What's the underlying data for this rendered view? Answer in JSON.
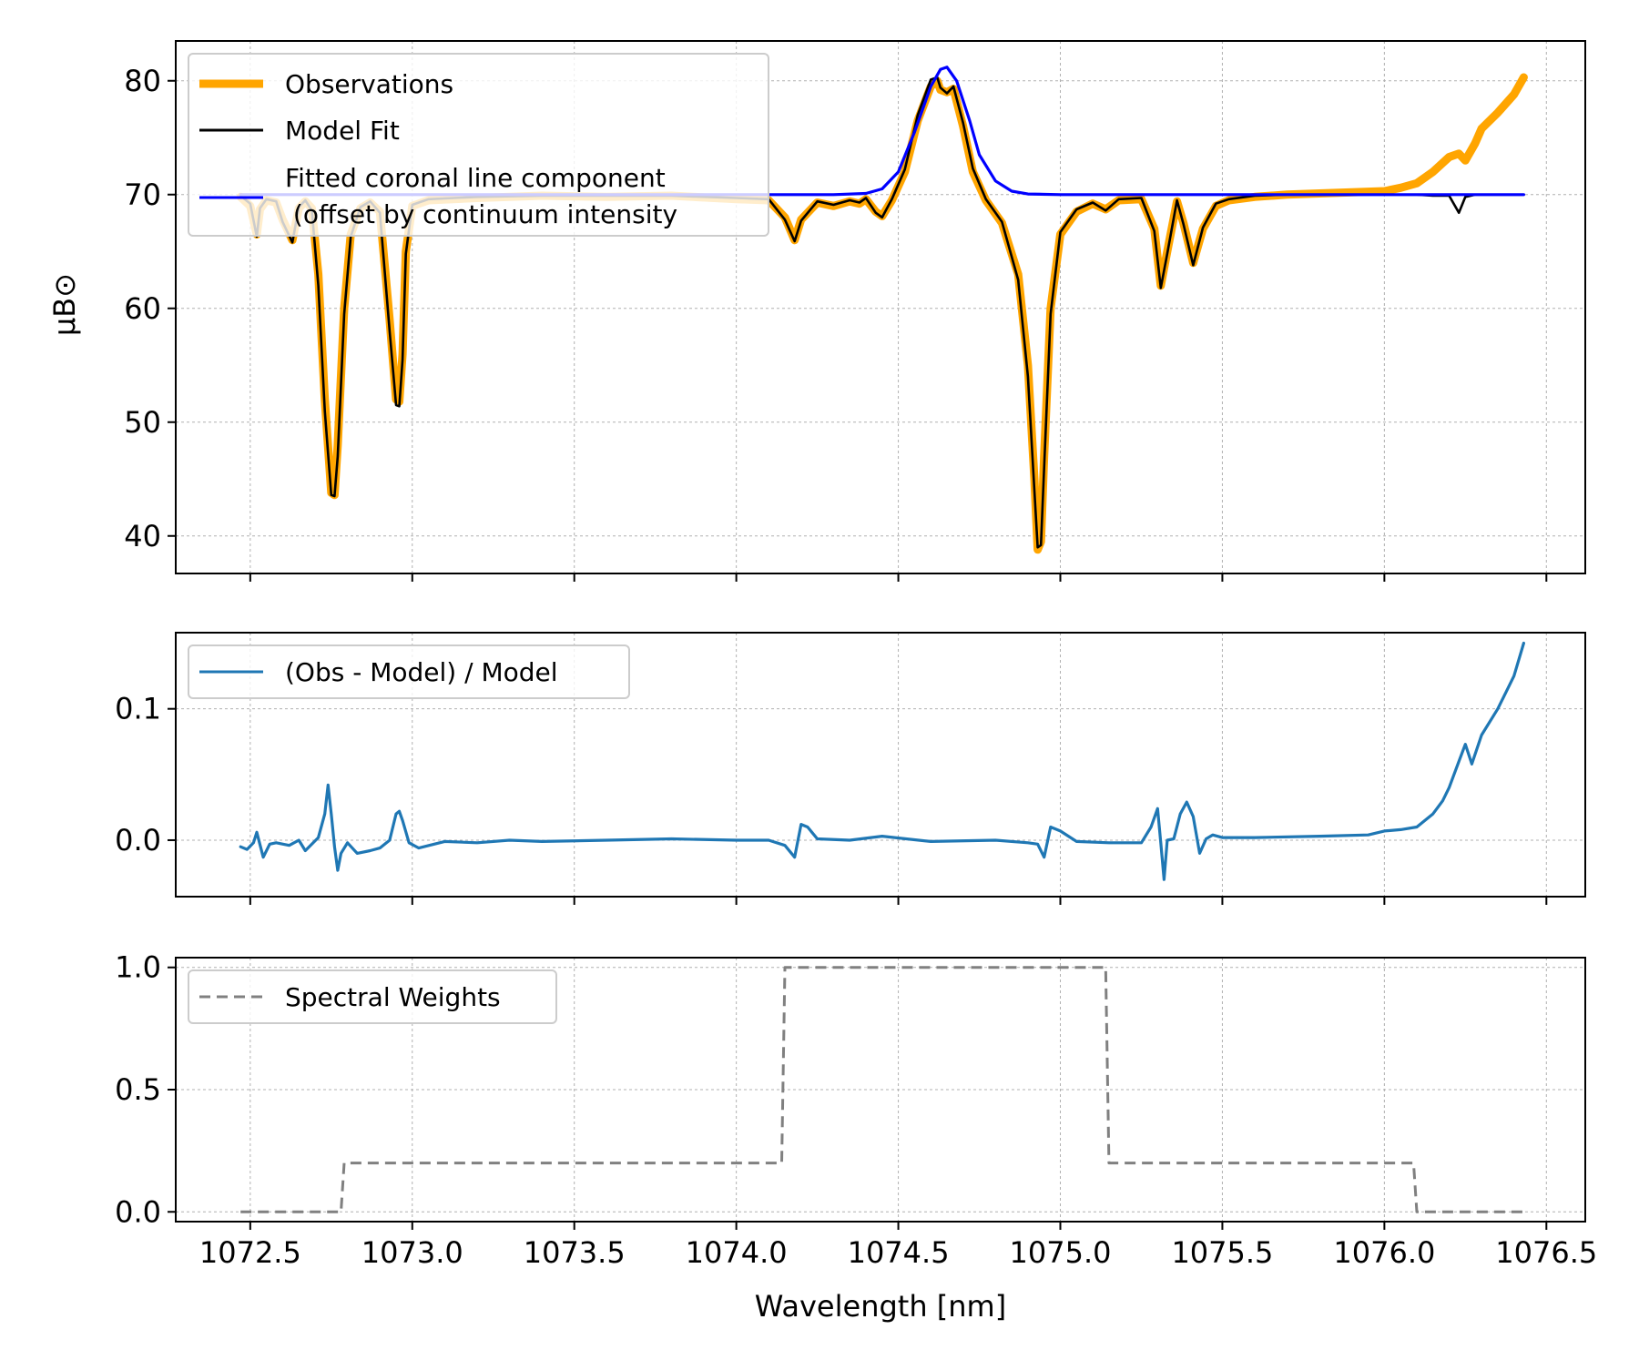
{
  "chart_data": [
    {
      "type": "line",
      "panel": "top",
      "xlabel": "",
      "ylabel": "μB⊙",
      "xlim": [
        1072.27,
        1076.62
      ],
      "ylim": [
        36.7,
        83.5
      ],
      "xticks": [
        1072.5,
        1073.0,
        1073.5,
        1074.0,
        1074.5,
        1075.0,
        1075.5,
        1076.0,
        1076.5
      ],
      "yticks": [
        40,
        50,
        60,
        70,
        80
      ],
      "ytick_labels": [
        "40",
        "50",
        "60",
        "70",
        "80"
      ],
      "grid": true,
      "legend_position": "upper-left",
      "series": [
        {
          "name": "Observations",
          "color": "#ffa500",
          "style": "solid",
          "x": [
            1072.47,
            1072.5,
            1072.52,
            1072.53,
            1072.55,
            1072.58,
            1072.6,
            1072.63,
            1072.65,
            1072.67,
            1072.69,
            1072.71,
            1072.73,
            1072.75,
            1072.76,
            1072.77,
            1072.79,
            1072.81,
            1072.84,
            1072.87,
            1072.9,
            1072.93,
            1072.95,
            1072.96,
            1072.97,
            1072.98,
            1073.0,
            1073.05,
            1073.2,
            1073.4,
            1073.6,
            1073.8,
            1074.0,
            1074.1,
            1074.15,
            1074.18,
            1074.2,
            1074.25,
            1074.3,
            1074.35,
            1074.38,
            1074.4,
            1074.43,
            1074.45,
            1074.48,
            1074.52,
            1074.56,
            1074.6,
            1074.62,
            1074.63,
            1074.65,
            1074.67,
            1074.7,
            1074.73,
            1074.77,
            1074.82,
            1074.87,
            1074.9,
            1074.92,
            1074.93,
            1074.94,
            1074.95,
            1074.97,
            1075.0,
            1075.05,
            1075.1,
            1075.14,
            1075.18,
            1075.25,
            1075.29,
            1075.31,
            1075.33,
            1075.36,
            1075.38,
            1075.41,
            1075.44,
            1075.48,
            1075.52,
            1075.6,
            1075.7,
            1075.8,
            1075.9,
            1076.0,
            1076.05,
            1076.1,
            1076.15,
            1076.2,
            1076.23,
            1076.25,
            1076.28,
            1076.3,
            1076.35,
            1076.4,
            1076.43
          ],
          "y": [
            69.8,
            69.0,
            66.5,
            68.7,
            69.5,
            69.3,
            67.8,
            66.0,
            68.8,
            69.4,
            68.8,
            63.0,
            52.0,
            43.8,
            43.6,
            48.0,
            60.0,
            66.5,
            68.8,
            69.3,
            68.5,
            59.0,
            52.0,
            51.8,
            56.0,
            65.0,
            69.0,
            69.5,
            69.7,
            69.9,
            69.8,
            69.9,
            69.6,
            69.5,
            68.0,
            66.0,
            67.8,
            69.3,
            69.0,
            69.4,
            69.2,
            69.6,
            68.5,
            68.1,
            69.5,
            72.0,
            76.5,
            79.5,
            80.0,
            79.2,
            79.0,
            79.3,
            76.0,
            72.0,
            69.5,
            67.5,
            63.0,
            55.0,
            45.0,
            38.8,
            39.5,
            47.0,
            60.0,
            66.5,
            68.5,
            69.2,
            68.7,
            69.5,
            69.6,
            67.0,
            62.0,
            65.0,
            69.4,
            67.5,
            64.0,
            67.0,
            69.0,
            69.5,
            69.8,
            70.0,
            70.1,
            70.2,
            70.3,
            70.6,
            71.0,
            72.0,
            73.3,
            73.6,
            73.0,
            74.5,
            75.8,
            77.2,
            78.8,
            80.3
          ]
        },
        {
          "name": "Model Fit",
          "color": "#000000",
          "style": "solid",
          "x": [
            1072.47,
            1072.5,
            1072.52,
            1072.53,
            1072.55,
            1072.58,
            1072.6,
            1072.63,
            1072.65,
            1072.67,
            1072.69,
            1072.71,
            1072.73,
            1072.75,
            1072.76,
            1072.77,
            1072.79,
            1072.81,
            1072.84,
            1072.87,
            1072.9,
            1072.93,
            1072.95,
            1072.96,
            1072.97,
            1072.98,
            1073.0,
            1073.05,
            1073.2,
            1073.4,
            1073.6,
            1073.8,
            1074.0,
            1074.1,
            1074.15,
            1074.18,
            1074.2,
            1074.25,
            1074.3,
            1074.35,
            1074.38,
            1074.4,
            1074.43,
            1074.45,
            1074.48,
            1074.52,
            1074.56,
            1074.6,
            1074.62,
            1074.63,
            1074.65,
            1074.67,
            1074.7,
            1074.73,
            1074.77,
            1074.82,
            1074.87,
            1074.9,
            1074.92,
            1074.93,
            1074.94,
            1074.95,
            1074.97,
            1075.0,
            1075.05,
            1075.1,
            1075.14,
            1075.18,
            1075.25,
            1075.29,
            1075.31,
            1075.33,
            1075.36,
            1075.38,
            1075.41,
            1075.44,
            1075.48,
            1075.52,
            1075.6,
            1075.7,
            1075.8,
            1075.9,
            1076.0,
            1076.05,
            1076.1,
            1076.15,
            1076.2,
            1076.23,
            1076.25,
            1076.28,
            1076.3,
            1076.35,
            1076.4,
            1076.43
          ],
          "y": [
            69.9,
            69.2,
            66.3,
            68.8,
            69.6,
            69.4,
            67.6,
            65.8,
            68.9,
            69.5,
            68.6,
            62.0,
            51.0,
            43.6,
            43.5,
            47.0,
            59.5,
            66.3,
            68.9,
            69.4,
            68.4,
            58.0,
            51.5,
            51.4,
            55.5,
            64.8,
            69.1,
            69.6,
            69.8,
            69.9,
            69.9,
            69.9,
            69.7,
            69.6,
            67.8,
            65.9,
            67.7,
            69.4,
            69.1,
            69.5,
            69.3,
            69.7,
            68.4,
            68.0,
            69.6,
            72.2,
            77.0,
            80.1,
            80.3,
            79.4,
            78.9,
            79.5,
            76.3,
            72.3,
            69.6,
            67.6,
            62.5,
            54.0,
            44.0,
            39.0,
            39.2,
            46.0,
            59.5,
            66.7,
            68.7,
            69.3,
            68.6,
            69.6,
            69.7,
            66.8,
            61.8,
            64.8,
            69.5,
            67.4,
            63.8,
            67.1,
            69.2,
            69.6,
            69.9,
            70.0,
            70.0,
            70.0,
            70.0,
            70.0,
            70.0,
            69.9,
            69.9,
            68.4,
            69.8,
            70.0,
            70.0,
            70.0,
            70.0,
            70.0
          ]
        },
        {
          "name": "Fitted coronal line component\n (offset by continuum intensity",
          "color": "#0000ff",
          "style": "solid",
          "x": [
            1072.47,
            1074.0,
            1074.3,
            1074.4,
            1074.45,
            1074.5,
            1074.55,
            1074.6,
            1074.63,
            1074.65,
            1074.68,
            1074.72,
            1074.75,
            1074.8,
            1074.85,
            1074.9,
            1075.0,
            1075.5,
            1076.43
          ],
          "y": [
            70.0,
            70.0,
            70.0,
            70.1,
            70.5,
            72.0,
            75.5,
            79.5,
            81.0,
            81.2,
            80.0,
            76.5,
            73.5,
            71.2,
            70.3,
            70.05,
            70.0,
            70.0,
            70.0
          ]
        }
      ]
    },
    {
      "type": "line",
      "panel": "middle",
      "xlabel": "",
      "ylabel": "",
      "xlim": [
        1072.27,
        1076.62
      ],
      "ylim": [
        -0.043,
        0.158
      ],
      "xticks": [
        1072.5,
        1073.0,
        1073.5,
        1074.0,
        1074.5,
        1075.0,
        1075.5,
        1076.0,
        1076.5
      ],
      "yticks": [
        0.0,
        0.1
      ],
      "ytick_labels": [
        "0.0",
        "0.1"
      ],
      "grid": true,
      "legend_position": "upper-left",
      "series": [
        {
          "name": "(Obs - Model) / Model",
          "color": "#1f77b4",
          "style": "solid",
          "x": [
            1072.47,
            1072.49,
            1072.51,
            1072.52,
            1072.54,
            1072.56,
            1072.58,
            1072.62,
            1072.65,
            1072.67,
            1072.69,
            1072.71,
            1072.73,
            1072.74,
            1072.75,
            1072.76,
            1072.77,
            1072.78,
            1072.8,
            1072.83,
            1072.87,
            1072.9,
            1072.93,
            1072.95,
            1072.96,
            1072.97,
            1072.99,
            1073.02,
            1073.1,
            1073.2,
            1073.3,
            1073.4,
            1073.6,
            1073.8,
            1074.0,
            1074.1,
            1074.15,
            1074.18,
            1074.2,
            1074.22,
            1074.25,
            1074.35,
            1074.45,
            1074.6,
            1074.8,
            1074.9,
            1074.93,
            1074.95,
            1074.97,
            1075.0,
            1075.05,
            1075.15,
            1075.25,
            1075.28,
            1075.3,
            1075.31,
            1075.32,
            1075.33,
            1075.35,
            1075.37,
            1075.39,
            1075.41,
            1075.43,
            1075.45,
            1075.47,
            1075.5,
            1075.6,
            1075.8,
            1075.95,
            1076.0,
            1076.05,
            1076.1,
            1076.15,
            1076.18,
            1076.2,
            1076.23,
            1076.25,
            1076.27,
            1076.3,
            1076.35,
            1076.4,
            1076.43
          ],
          "y": [
            -0.005,
            -0.007,
            -0.002,
            0.006,
            -0.013,
            -0.003,
            -0.002,
            -0.004,
            0.0,
            -0.008,
            -0.003,
            0.002,
            0.02,
            0.042,
            0.02,
            -0.005,
            -0.023,
            -0.01,
            -0.002,
            -0.01,
            -0.008,
            -0.006,
            0.0,
            0.02,
            0.022,
            0.015,
            -0.002,
            -0.006,
            -0.001,
            -0.002,
            0.0,
            -0.001,
            0.0,
            0.001,
            0.0,
            0.0,
            -0.004,
            -0.013,
            0.012,
            0.01,
            0.001,
            0.0,
            0.003,
            -0.001,
            0.0,
            -0.002,
            -0.003,
            -0.013,
            0.01,
            0.007,
            -0.001,
            -0.002,
            -0.002,
            0.01,
            0.024,
            -0.002,
            -0.03,
            0.0,
            0.001,
            0.02,
            0.029,
            0.018,
            -0.01,
            0.001,
            0.004,
            0.002,
            0.002,
            0.003,
            0.004,
            0.007,
            0.008,
            0.01,
            0.02,
            0.03,
            0.04,
            0.06,
            0.073,
            0.058,
            0.08,
            0.1,
            0.125,
            0.15
          ]
        }
      ]
    },
    {
      "type": "line",
      "panel": "bottom",
      "xlabel": "Wavelength [nm]",
      "ylabel": "",
      "xlim": [
        1072.27,
        1076.62
      ],
      "ylim": [
        -0.04,
        1.04
      ],
      "xticks": [
        1072.5,
        1073.0,
        1073.5,
        1074.0,
        1074.5,
        1075.0,
        1075.5,
        1076.0,
        1076.5
      ],
      "xtick_labels": [
        "1072.5",
        "1073.0",
        "1073.5",
        "1074.0",
        "1074.5",
        "1075.0",
        "1075.5",
        "1076.0",
        "1076.5"
      ],
      "yticks": [
        0.0,
        0.5,
        1.0
      ],
      "ytick_labels": [
        "0.0",
        "0.5",
        "1.0"
      ],
      "grid": true,
      "legend_position": "upper-left",
      "series": [
        {
          "name": "Spectral Weights",
          "color": "#808080",
          "style": "dashed",
          "x": [
            1072.47,
            1072.78,
            1072.79,
            1074.14,
            1074.15,
            1075.14,
            1075.15,
            1076.09,
            1076.1,
            1076.43
          ],
          "y": [
            0.0,
            0.0,
            0.2,
            0.2,
            1.0,
            1.0,
            0.2,
            0.2,
            0.0,
            0.0
          ]
        }
      ]
    }
  ]
}
